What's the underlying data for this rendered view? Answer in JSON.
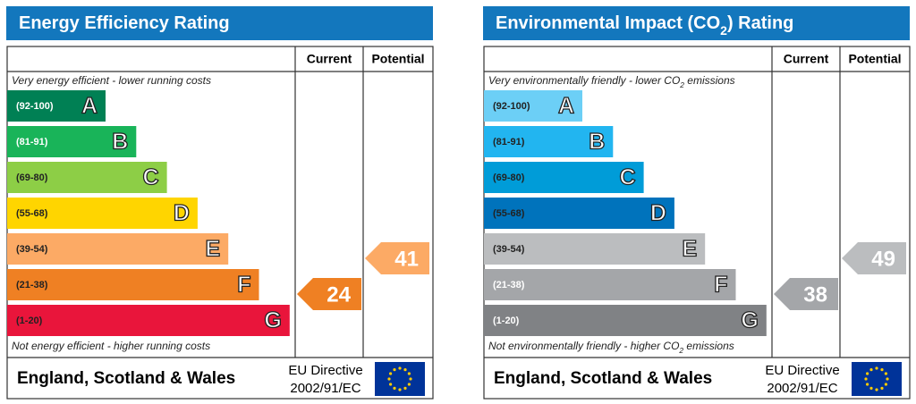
{
  "panels": [
    {
      "title": [
        "Energy Efficiency Rating"
      ],
      "header": {
        "current": "Current",
        "potential": "Potential"
      },
      "top_note": [
        "Very energy efficient - lower running costs"
      ],
      "bands": [
        {
          "range": "(92-100)",
          "letter": "A",
          "color": "#008054",
          "label_color": "#ffffff"
        },
        {
          "range": "(81-91)",
          "letter": "B",
          "color": "#19b459",
          "label_color": "#ffffff"
        },
        {
          "range": "(69-80)",
          "letter": "C",
          "color": "#8dce46",
          "label_color": "#222222"
        },
        {
          "range": "(55-68)",
          "letter": "D",
          "color": "#ffd500",
          "label_color": "#222222"
        },
        {
          "range": "(39-54)",
          "letter": "E",
          "color": "#fcaa65",
          "label_color": "#222222"
        },
        {
          "range": "(21-38)",
          "letter": "F",
          "color": "#ef8023",
          "label_color": "#222222"
        },
        {
          "range": "(1-20)",
          "letter": "G",
          "color": "#e9153b",
          "label_color": "#222222"
        }
      ],
      "bottom_note": [
        "Not energy efficient - higher running costs"
      ],
      "current": 24,
      "potential": 41,
      "footer": {
        "region": "England, Scotland & Wales",
        "directive": "EU Directive",
        "directive_code": "2002/91/EC"
      }
    },
    {
      "title": [
        "Environmental Impact (CO",
        "2",
        ") Rating"
      ],
      "header": {
        "current": "Current",
        "potential": "Potential"
      },
      "top_note": [
        "Very environmentally friendly - lower CO",
        "2",
        " emissions"
      ],
      "bands": [
        {
          "range": "(92-100)",
          "letter": "A",
          "color": "#6ccff6",
          "label_color": "#222222"
        },
        {
          "range": "(81-91)",
          "letter": "B",
          "color": "#22b5f0",
          "label_color": "#222222"
        },
        {
          "range": "(69-80)",
          "letter": "C",
          "color": "#009cd8",
          "label_color": "#222222"
        },
        {
          "range": "(55-68)",
          "letter": "D",
          "color": "#0073bc",
          "label_color": "#222222"
        },
        {
          "range": "(39-54)",
          "letter": "E",
          "color": "#bbbdbf",
          "label_color": "#222222"
        },
        {
          "range": "(21-38)",
          "letter": "F",
          "color": "#a4a6a9",
          "label_color": "#ffffff"
        },
        {
          "range": "(1-20)",
          "letter": "G",
          "color": "#808285",
          "label_color": "#ffffff"
        }
      ],
      "bottom_note": [
        "Not environmentally friendly - higher CO",
        "2",
        " emissions"
      ],
      "current": 38,
      "potential": 49,
      "footer": {
        "region": "England, Scotland & Wales",
        "directive": "EU Directive",
        "directive_code": "2002/91/EC"
      }
    }
  ]
}
